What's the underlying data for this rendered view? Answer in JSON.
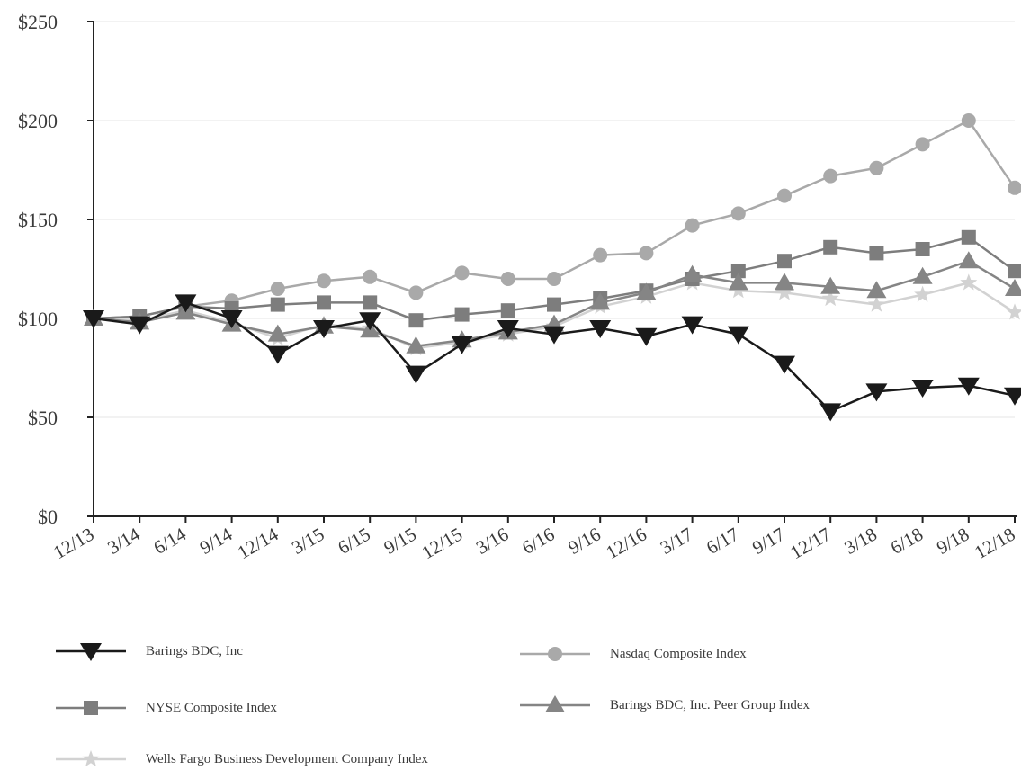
{
  "chart_data": {
    "type": "line",
    "title": "",
    "xlabel": "",
    "ylabel": "",
    "ylim": [
      0,
      250
    ],
    "y_ticks": [
      "$0",
      "$50",
      "$100",
      "$150",
      "$200",
      "$250"
    ],
    "y_tick_values": [
      0,
      50,
      100,
      150,
      200,
      250
    ],
    "categories": [
      "12/13",
      "3/14",
      "6/14",
      "9/14",
      "12/14",
      "3/15",
      "6/15",
      "9/15",
      "12/15",
      "3/16",
      "6/16",
      "9/16",
      "12/16",
      "3/17",
      "6/17",
      "9/17",
      "12/17",
      "3/18",
      "6/18",
      "9/18",
      "12/18"
    ],
    "grid": "horizontal",
    "legend_position": "bottom",
    "series": [
      {
        "name": "Barings BDC, Inc",
        "color": "#1a1a1a",
        "marker": "triangle-down",
        "values": [
          100,
          97,
          108,
          100,
          82,
          95,
          99,
          72,
          87,
          95,
          92,
          95,
          91,
          97,
          92,
          77,
          53,
          63,
          65,
          66,
          61
        ]
      },
      {
        "name": "Nasdaq Composite Index",
        "color": "#a9a9a9",
        "marker": "circle",
        "values": [
          100,
          101,
          106,
          109,
          115,
          119,
          121,
          113,
          123,
          120,
          120,
          132,
          133,
          147,
          153,
          162,
          172,
          176,
          188,
          200,
          166
        ]
      },
      {
        "name": "NYSE Composite Index",
        "color": "#7d7d7d",
        "marker": "square",
        "values": [
          100,
          101,
          106,
          105,
          107,
          108,
          108,
          99,
          102,
          104,
          107,
          110,
          114,
          120,
          124,
          129,
          136,
          133,
          135,
          141,
          124
        ]
      },
      {
        "name": "Barings BDC, Inc. Peer Group Index",
        "color": "#858585",
        "marker": "triangle-up",
        "values": [
          100,
          98,
          103,
          97,
          92,
          96,
          94,
          86,
          89,
          93,
          97,
          108,
          113,
          122,
          118,
          118,
          116,
          114,
          121,
          129,
          115
        ]
      },
      {
        "name": "Wells Fargo Business Development Company Index",
        "color": "#d2d2d2",
        "marker": "star",
        "values": [
          100,
          99,
          104,
          98,
          90,
          97,
          95,
          85,
          88,
          92,
          96,
          106,
          111,
          118,
          114,
          113,
          110,
          107,
          112,
          118,
          103
        ]
      }
    ]
  }
}
